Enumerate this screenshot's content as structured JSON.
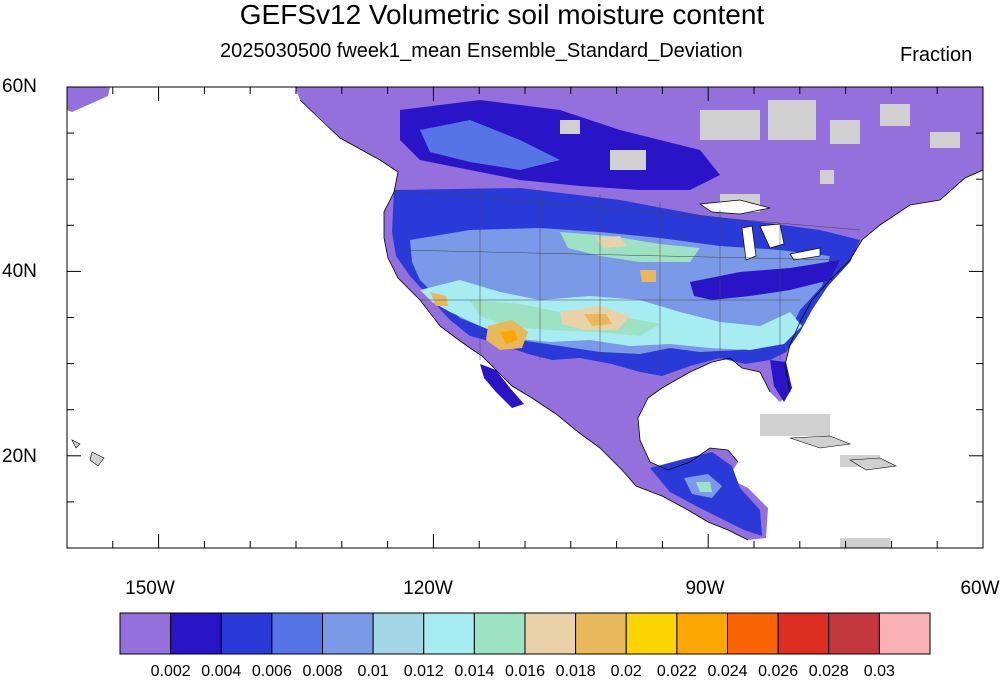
{
  "header": {
    "title": "GEFSv12 Volumetric soil moisture content",
    "subtitle": "2025030500 fweek1_mean Ensemble_Standard_Deviation",
    "units": "Fraction"
  },
  "map": {
    "lon_range": [
      -160,
      -60
    ],
    "lat_range": [
      10,
      60
    ],
    "lat_labels": [
      "60N",
      "40N",
      "20N"
    ],
    "lon_labels": [
      "150W",
      "120W",
      "90W",
      "60W"
    ]
  },
  "colorbar": {
    "levels": [
      "0.002",
      "0.004",
      "0.006",
      "0.008",
      "0.01",
      "0.012",
      "0.014",
      "0.016",
      "0.018",
      "0.02",
      "0.022",
      "0.024",
      "0.026",
      "0.028",
      "0.03"
    ],
    "colors": [
      "#9370db",
      "#2a14c8",
      "#2a3ad8",
      "#5574e6",
      "#7a9ae8",
      "#a3d6e5",
      "#a6ecf0",
      "#9ee2c4",
      "#e9d2a7",
      "#e8b95a",
      "#fcd500",
      "#fca602",
      "#fb6405",
      "#dc2e20",
      "#c3383e",
      "#fab1b4"
    ]
  },
  "colors": {
    "water": "#ffffff",
    "missing": "#d0d0d0",
    "coastline": "#000000"
  }
}
